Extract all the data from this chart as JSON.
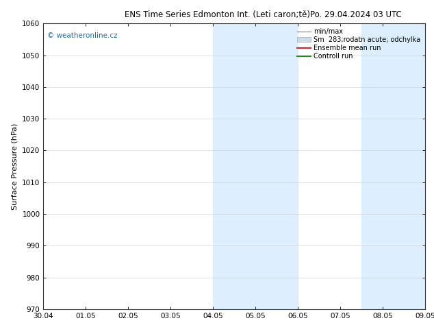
{
  "title": "ENS Time Series Edmonton Int. (Leti caron;tě)",
  "date_label": "Po. 29.04.2024 03 UTC",
  "ylabel": "Surface Pressure (hPa)",
  "ylim": [
    970,
    1060
  ],
  "yticks": [
    970,
    980,
    990,
    1000,
    1010,
    1020,
    1030,
    1040,
    1050,
    1060
  ],
  "xtick_labels": [
    "30.04",
    "01.05",
    "02.05",
    "03.05",
    "04.05",
    "05.05",
    "06.05",
    "07.05",
    "08.05",
    "09.05"
  ],
  "xmin": 0,
  "xmax": 9,
  "shaded_bands": [
    {
      "x_start": 4.0,
      "x_end": 6.0
    },
    {
      "x_start": 7.5,
      "x_end": 9.0
    }
  ],
  "band_color": "#ddeeff",
  "watermark_text": "© weatheronline.cz",
  "watermark_color": "#1a6ec0",
  "legend_entries": [
    {
      "label": "min/max",
      "color": "#999999",
      "lw": 1.0,
      "type": "line"
    },
    {
      "label": "Sm  283;rodatn acute; odchylka",
      "color": "#ccdde8",
      "lw": 5,
      "type": "bar"
    },
    {
      "label": "Ensemble mean run",
      "color": "#dd2222",
      "lw": 1.5,
      "type": "line"
    },
    {
      "label": "Controll run",
      "color": "#228822",
      "lw": 1.5,
      "type": "line"
    }
  ],
  "bg_color": "#ffffff",
  "title_fontsize": 8.5,
  "date_fontsize": 8.5,
  "ylabel_fontsize": 8,
  "tick_fontsize": 7.5,
  "legend_fontsize": 7,
  "watermark_fontsize": 7.5
}
